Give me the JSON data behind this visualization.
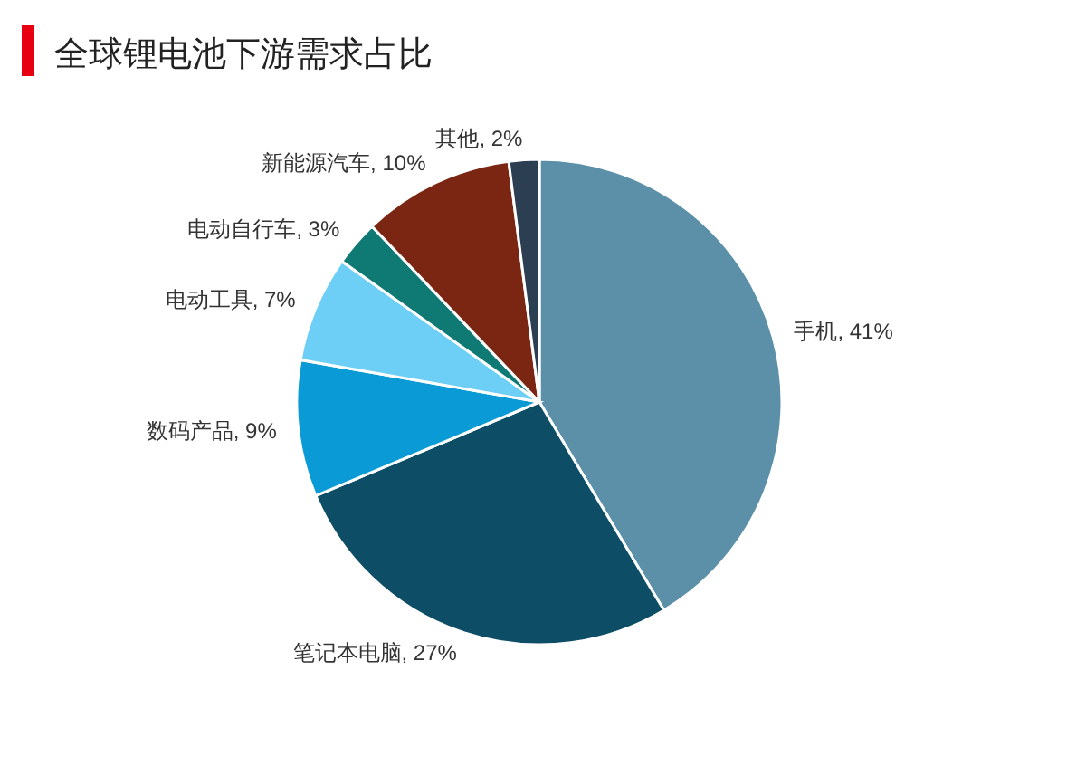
{
  "chart_data": {
    "type": "pie",
    "title": "全球锂电池下游需求占比",
    "categories": [
      "手机",
      "笔记本电脑",
      "数码产品",
      "电动工具",
      "电动自行车",
      "新能源汽车",
      "其他"
    ],
    "values": [
      41,
      27,
      9,
      7,
      3,
      10,
      2
    ],
    "value_labels": [
      "41%",
      "27%",
      "9%",
      "7%",
      "3%",
      "10%",
      "2%"
    ],
    "colors": [
      "#5b90a8",
      "#0d4d66",
      "#0a9bd6",
      "#6dcff5",
      "#0f7a74",
      "#7a2612",
      "#2c3f52"
    ]
  }
}
